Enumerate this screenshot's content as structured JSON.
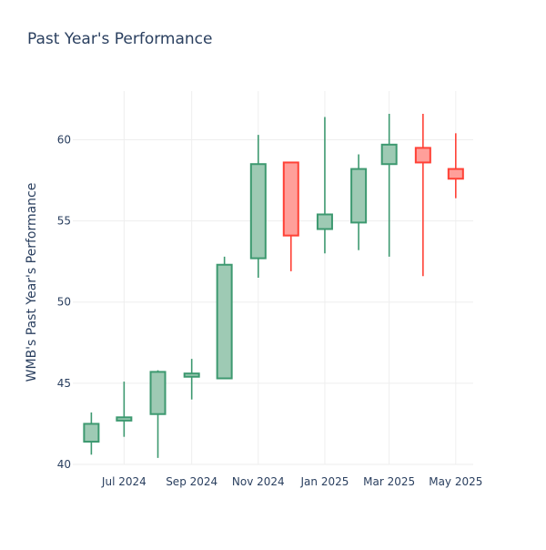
{
  "chart_data": {
    "type": "candlestick",
    "title": "Past Year's Performance",
    "xlabel": "",
    "ylabel": "WMB's Past Year's Performance",
    "ylim": [
      40,
      63
    ],
    "y_ticks": [
      40,
      45,
      50,
      55,
      60
    ],
    "x_ticks": [
      {
        "date": "2024-07-01",
        "label": "Jul 2024"
      },
      {
        "date": "2024-09-01",
        "label": "Sep 2024"
      },
      {
        "date": "2024-11-01",
        "label": "Nov 2024"
      },
      {
        "date": "2025-01-01",
        "label": "Jan 2025"
      },
      {
        "date": "2025-03-01",
        "label": "Mar 2025"
      },
      {
        "date": "2025-05-01",
        "label": "May 2025"
      }
    ],
    "grid": true,
    "colors": {
      "increasing_line": "#3d9970",
      "increasing_fill": "#9ecab4",
      "decreasing_line": "#ff4136",
      "decreasing_fill": "#ff9f9a",
      "grid": "#eeeeee",
      "text": "#2a3f5f"
    },
    "candles": [
      {
        "date": "2024-06-01",
        "open": 41.4,
        "high": 43.2,
        "low": 40.6,
        "close": 42.5
      },
      {
        "date": "2024-07-01",
        "open": 42.7,
        "high": 45.1,
        "low": 41.7,
        "close": 42.9
      },
      {
        "date": "2024-08-01",
        "open": 43.1,
        "high": 45.8,
        "low": 40.4,
        "close": 45.7
      },
      {
        "date": "2024-09-01",
        "open": 45.4,
        "high": 46.5,
        "low": 44.0,
        "close": 45.6
      },
      {
        "date": "2024-10-01",
        "open": 45.3,
        "high": 52.8,
        "low": 45.3,
        "close": 52.3
      },
      {
        "date": "2024-11-01",
        "open": 52.7,
        "high": 60.3,
        "low": 51.5,
        "close": 58.5
      },
      {
        "date": "2024-12-01",
        "open": 58.6,
        "high": 58.6,
        "low": 51.9,
        "close": 54.1
      },
      {
        "date": "2025-01-01",
        "open": 54.5,
        "high": 61.4,
        "low": 53.0,
        "close": 55.4
      },
      {
        "date": "2025-02-01",
        "open": 54.9,
        "high": 59.1,
        "low": 53.2,
        "close": 58.2
      },
      {
        "date": "2025-03-01",
        "open": 58.5,
        "high": 61.6,
        "low": 52.8,
        "close": 59.7
      },
      {
        "date": "2025-04-01",
        "open": 59.5,
        "high": 61.6,
        "low": 51.6,
        "close": 58.6
      },
      {
        "date": "2025-05-01",
        "open": 58.2,
        "high": 60.4,
        "low": 56.4,
        "close": 57.6
      }
    ]
  }
}
